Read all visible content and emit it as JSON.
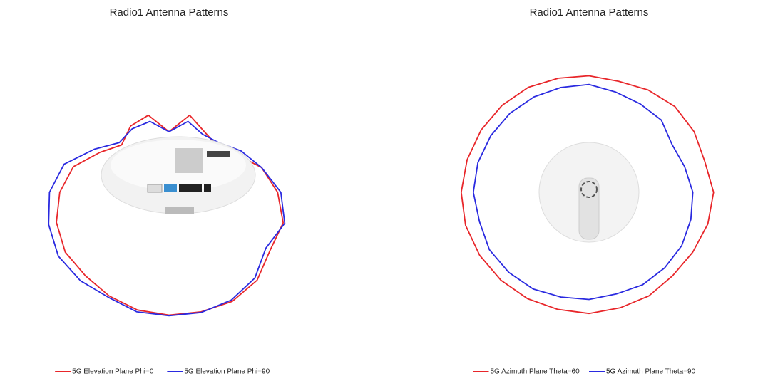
{
  "chart_data": [
    {
      "type": "polar",
      "title": "Radio1 Antenna Patterns",
      "theta": [
        0,
        15,
        30,
        45,
        60,
        75,
        90,
        105,
        120,
        135,
        150,
        165,
        180,
        195,
        210,
        225,
        240,
        255,
        270,
        285,
        300,
        315,
        330,
        345
      ],
      "series": [
        {
          "name": "5G Elevation Plane Phi=0",
          "color": "#e8262a",
          "values": [
            -1.5,
            -1.8,
            -2.5,
            -3,
            -2.5,
            -3.5,
            -5.8,
            -9,
            -15,
            -19,
            -16,
            -15,
            -21,
            -15,
            -18,
            -19,
            -16,
            -10,
            -6,
            -3,
            -3.5,
            -1,
            -0.5,
            -1.2
          ]
        },
        {
          "name": "5G Elevation Plane Phi=90",
          "color": "#2a2ae0",
          "values": [
            -1.3,
            -1.2,
            -2,
            -0.8,
            0,
            -1,
            -2.6,
            -6,
            -13,
            -18,
            -17,
            -17,
            -21,
            -17,
            -19,
            -18,
            -14,
            -10,
            -5,
            -2.5,
            -5,
            -2,
            -1,
            -1
          ]
        }
      ],
      "rlim": [
        -40,
        10
      ],
      "rticks": [
        -20,
        -15,
        -10,
        -5,
        0,
        5,
        10
      ],
      "thetaticks": [
        0,
        15,
        30,
        45,
        60,
        75,
        90,
        105,
        120,
        135,
        150,
        165,
        180,
        195,
        210,
        225,
        240,
        255,
        270,
        285,
        300,
        315,
        330,
        345
      ]
    },
    {
      "type": "polar",
      "title": "Radio1 Antenna Patterns",
      "theta": [
        0,
        15,
        30,
        45,
        60,
        75,
        90,
        105,
        120,
        135,
        150,
        165,
        180,
        195,
        210,
        225,
        240,
        255,
        270,
        285,
        300,
        315,
        330,
        345
      ],
      "series": [
        {
          "name": "5G Azimuth Plane Theta=60",
          "color": "#e8262a",
          "values": [
            -2,
            -2,
            -1.5,
            -1,
            -0.5,
            0,
            0,
            -0.5,
            -1,
            -1.5,
            -2,
            -3,
            -3.5,
            -4,
            -3,
            -2,
            -2,
            -2.5,
            -1,
            -1.5,
            -2.5,
            -3,
            -2.5,
            -2.5
          ]
        },
        {
          "name": "5G Azimuth Plane Theta=90",
          "color": "#2a2ae0",
          "values": [
            -6.4,
            -6,
            -5,
            -4.5,
            -4,
            -4.5,
            -3.8,
            -4,
            -4.5,
            -5,
            -5.5,
            -6,
            -6.2,
            -7.5,
            -8,
            -8,
            -10,
            -9,
            -7.5,
            -7,
            -6.5,
            -6.5,
            -6.5,
            -7
          ]
        }
      ],
      "rlim": [
        -40,
        10
      ],
      "rticks": [
        -20,
        -15,
        -10,
        -5,
        0,
        5,
        10
      ],
      "thetaticks": [
        0,
        15,
        30,
        45,
        60,
        75,
        90,
        105,
        120,
        135,
        150,
        165,
        180,
        195,
        210,
        225,
        240,
        255,
        270,
        285,
        300,
        315,
        330,
        345
      ]
    }
  ]
}
